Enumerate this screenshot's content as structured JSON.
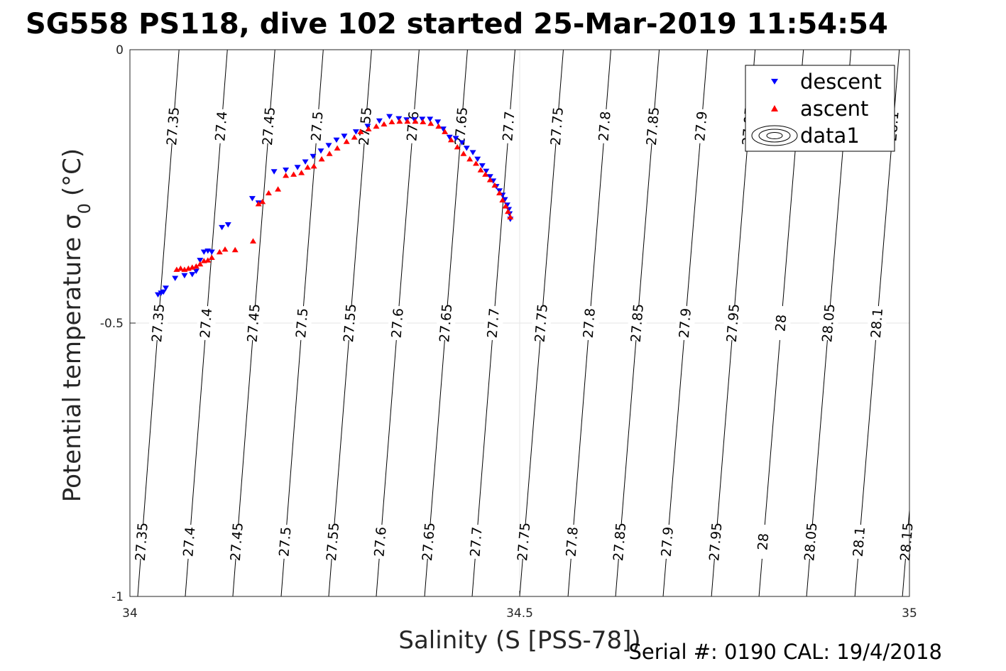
{
  "chart_data": {
    "type": "scatter",
    "title": "SG558 PS118, dive 102 started 25-Mar-2019 11:54:54",
    "xlabel": "Salinity (S [PSS-78])",
    "ylabel": "Potential temperature σ",
    "ylabel_subscript": "0",
    "ylabel_unit": "(°C)",
    "xlim": [
      34,
      35
    ],
    "ylim": [
      -1,
      0
    ],
    "x_ticks": [
      34,
      34.5,
      35
    ],
    "x_tick_labels": [
      "34",
      "34.5",
      "35"
    ],
    "y_ticks": [
      0,
      -0.5,
      -1
    ],
    "y_tick_labels": [
      "0",
      "-0.5",
      "-1"
    ],
    "grid": true,
    "legend": {
      "placement": "top-right",
      "entries": [
        "descent",
        "ascent",
        "data1"
      ]
    },
    "footer": "Serial #: 0190  CAL: 19/4/2018",
    "series": [
      {
        "name": "descent",
        "marker": "triangle-down",
        "color": "#0000ff",
        "points": [
          [
            34.036,
            -0.448
          ],
          [
            34.04,
            -0.445
          ],
          [
            34.043,
            -0.443
          ],
          [
            34.046,
            -0.436
          ],
          [
            34.058,
            -0.418
          ],
          [
            34.07,
            -0.413
          ],
          [
            34.08,
            -0.411
          ],
          [
            34.085,
            -0.405
          ],
          [
            34.09,
            -0.385
          ],
          [
            34.095,
            -0.37
          ],
          [
            34.1,
            -0.368
          ],
          [
            34.105,
            -0.37
          ],
          [
            34.118,
            -0.325
          ],
          [
            34.126,
            -0.32
          ],
          [
            34.157,
            -0.272
          ],
          [
            34.165,
            -0.28
          ],
          [
            34.185,
            -0.223
          ],
          [
            34.2,
            -0.22
          ],
          [
            34.215,
            -0.215
          ],
          [
            34.225,
            -0.205
          ],
          [
            34.235,
            -0.195
          ],
          [
            34.245,
            -0.185
          ],
          [
            34.255,
            -0.175
          ],
          [
            34.265,
            -0.165
          ],
          [
            34.275,
            -0.158
          ],
          [
            34.29,
            -0.15
          ],
          [
            34.305,
            -0.14
          ],
          [
            34.32,
            -0.13
          ],
          [
            34.333,
            -0.122
          ],
          [
            34.345,
            -0.126
          ],
          [
            34.355,
            -0.128
          ],
          [
            34.365,
            -0.128
          ],
          [
            34.375,
            -0.127
          ],
          [
            34.385,
            -0.127
          ],
          [
            34.395,
            -0.132
          ],
          [
            34.402,
            -0.145
          ],
          [
            34.41,
            -0.16
          ],
          [
            34.418,
            -0.162
          ],
          [
            34.426,
            -0.17
          ],
          [
            34.432,
            -0.18
          ],
          [
            34.44,
            -0.188
          ],
          [
            34.446,
            -0.2
          ],
          [
            34.452,
            -0.212
          ],
          [
            34.457,
            -0.222
          ],
          [
            34.462,
            -0.232
          ],
          [
            34.466,
            -0.24
          ],
          [
            34.47,
            -0.25
          ],
          [
            34.474,
            -0.258
          ],
          [
            34.478,
            -0.266
          ],
          [
            34.481,
            -0.274
          ],
          [
            34.484,
            -0.284
          ],
          [
            34.486,
            -0.292
          ],
          [
            34.487,
            -0.3
          ],
          [
            34.488,
            -0.31
          ]
        ]
      },
      {
        "name": "ascent",
        "marker": "triangle-up",
        "color": "#ff0000",
        "points": [
          [
            34.06,
            -0.402
          ],
          [
            34.065,
            -0.4
          ],
          [
            34.07,
            -0.402
          ],
          [
            34.075,
            -0.4
          ],
          [
            34.08,
            -0.398
          ],
          [
            34.085,
            -0.396
          ],
          [
            34.09,
            -0.392
          ],
          [
            34.095,
            -0.386
          ],
          [
            34.1,
            -0.385
          ],
          [
            34.105,
            -0.38
          ],
          [
            34.115,
            -0.37
          ],
          [
            34.122,
            -0.365
          ],
          [
            34.135,
            -0.366
          ],
          [
            34.158,
            -0.35
          ],
          [
            34.165,
            -0.282
          ],
          [
            34.17,
            -0.278
          ],
          [
            34.178,
            -0.262
          ],
          [
            34.19,
            -0.255
          ],
          [
            34.2,
            -0.23
          ],
          [
            34.21,
            -0.228
          ],
          [
            34.22,
            -0.225
          ],
          [
            34.228,
            -0.215
          ],
          [
            34.236,
            -0.213
          ],
          [
            34.246,
            -0.2
          ],
          [
            34.256,
            -0.19
          ],
          [
            34.266,
            -0.18
          ],
          [
            34.278,
            -0.168
          ],
          [
            34.288,
            -0.16
          ],
          [
            34.296,
            -0.15
          ],
          [
            34.306,
            -0.145
          ],
          [
            34.316,
            -0.14
          ],
          [
            34.326,
            -0.136
          ],
          [
            34.336,
            -0.132
          ],
          [
            34.346,
            -0.131
          ],
          [
            34.356,
            -0.131
          ],
          [
            34.366,
            -0.131
          ],
          [
            34.376,
            -0.132
          ],
          [
            34.386,
            -0.135
          ],
          [
            34.396,
            -0.14
          ],
          [
            34.404,
            -0.15
          ],
          [
            34.412,
            -0.165
          ],
          [
            34.42,
            -0.178
          ],
          [
            34.428,
            -0.19
          ],
          [
            34.436,
            -0.2
          ],
          [
            34.444,
            -0.208
          ],
          [
            34.45,
            -0.22
          ],
          [
            34.456,
            -0.228
          ],
          [
            34.462,
            -0.238
          ],
          [
            34.468,
            -0.248
          ],
          [
            34.474,
            -0.262
          ],
          [
            34.478,
            -0.275
          ],
          [
            34.482,
            -0.286
          ],
          [
            34.485,
            -0.296
          ],
          [
            34.488,
            -0.306
          ]
        ]
      }
    ],
    "isopycnals": [
      {
        "value": "27.35",
        "x_top": 34.063,
        "x_bottom": 34.01
      },
      {
        "value": "27.4",
        "x_top": 34.125,
        "x_bottom": 34.071
      },
      {
        "value": "27.45",
        "x_top": 34.186,
        "x_bottom": 34.132
      },
      {
        "value": "27.5",
        "x_top": 34.248,
        "x_bottom": 34.194
      },
      {
        "value": "27.55",
        "x_top": 34.31,
        "x_bottom": 34.255
      },
      {
        "value": "27.6",
        "x_top": 34.371,
        "x_bottom": 34.316
      },
      {
        "value": "27.65",
        "x_top": 34.433,
        "x_bottom": 34.378
      },
      {
        "value": "27.7",
        "x_top": 34.494,
        "x_bottom": 34.439
      },
      {
        "value": "27.75",
        "x_top": 34.556,
        "x_bottom": 34.5
      },
      {
        "value": "27.8",
        "x_top": 34.617,
        "x_bottom": 34.562
      },
      {
        "value": "27.85",
        "x_top": 34.679,
        "x_bottom": 34.623
      },
      {
        "value": "27.9",
        "x_top": 34.741,
        "x_bottom": 34.684
      },
      {
        "value": "27.95",
        "x_top": 34.802,
        "x_bottom": 34.746
      },
      {
        "value": "28",
        "x_top": 34.864,
        "x_bottom": 34.807
      },
      {
        "value": "28.05",
        "x_top": 34.925,
        "x_bottom": 34.868
      },
      {
        "value": "28.1",
        "x_top": 34.987,
        "x_bottom": 34.93
      },
      {
        "value": "28.15",
        "x_top": 35.048,
        "x_bottom": 34.991
      }
    ],
    "isopycnal_label_rows": [
      -0.14,
      -0.5,
      -0.9
    ]
  }
}
